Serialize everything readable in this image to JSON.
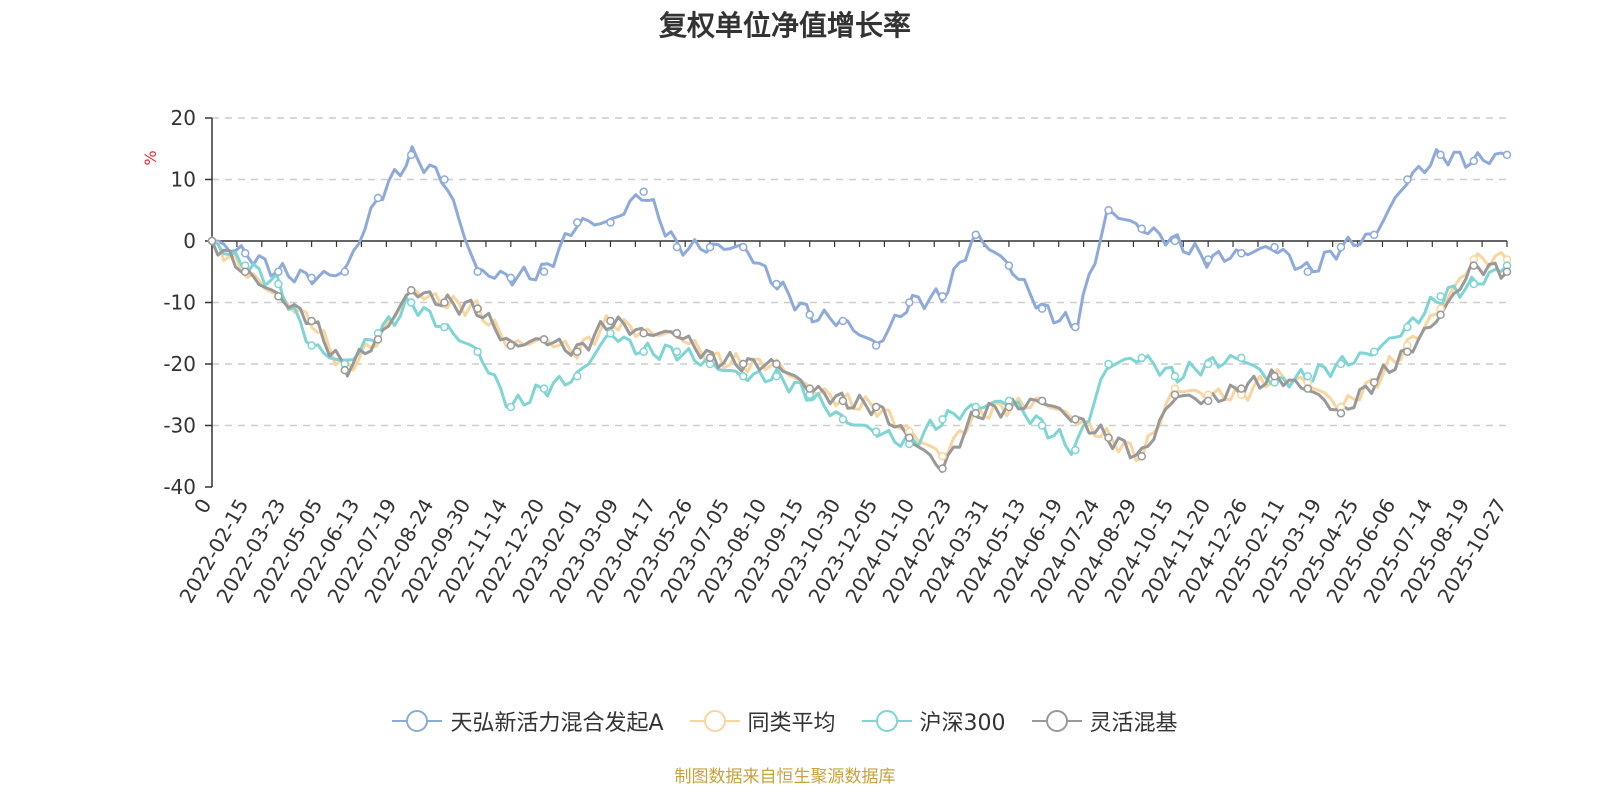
{
  "chart_data": {
    "type": "line",
    "title": "复权单位净值增长率",
    "ylabel": "%",
    "ylim": [
      -40,
      20
    ],
    "yticks": [
      -40,
      -30,
      -20,
      -10,
      0,
      10,
      20
    ],
    "tick_labels": [
      "0",
      "2022-02-15",
      "2022-03-23",
      "2022-05-05",
      "2022-06-13",
      "2022-07-19",
      "2022-08-24",
      "2022-09-30",
      "2022-11-14",
      "2022-12-20",
      "2023-02-01",
      "2023-03-09",
      "2023-04-17",
      "2023-05-26",
      "2023-07-05",
      "2023-08-10",
      "2023-09-15",
      "2023-10-30",
      "2023-12-05",
      "2024-01-10",
      "2024-02-23",
      "2024-03-31",
      "2024-05-13",
      "2024-06-19",
      "2024-07-24",
      "2024-08-29",
      "2024-10-15",
      "2024-11-20",
      "2024-12-26",
      "2025-02-11",
      "2025-03-19",
      "2025-04-25",
      "2025-06-06",
      "2025-07-14",
      "2025-08-19",
      "2025-10-27"
    ],
    "series": [
      {
        "name": "天弘新活力混合发起A",
        "color": "#8eaadb",
        "values": [
          0,
          -2,
          -5,
          -6,
          -5,
          7,
          14,
          10,
          -5,
          -6,
          -5,
          3,
          3,
          8,
          -1,
          -1,
          -1,
          -7,
          -12,
          -13,
          -17,
          -10,
          -9,
          1,
          -4,
          -11,
          -14,
          5,
          2,
          0,
          -3,
          -2,
          -1,
          -5,
          -1,
          1,
          10,
          14,
          13,
          14
        ]
      },
      {
        "name": "同类平均",
        "color": "#f9d6a0",
        "values": [
          0,
          -5,
          -9,
          -13,
          -21,
          -16,
          -8,
          -10,
          -11,
          -17,
          -16,
          -18,
          -13,
          -15,
          -15,
          -19,
          -20,
          -20,
          -24,
          -26,
          -27,
          -31,
          -35,
          -28,
          -27,
          -26,
          -29,
          -32,
          -35,
          -24,
          -25,
          -25,
          -22,
          -23,
          -27,
          -23,
          -17,
          -11,
          -3,
          -3
        ]
      },
      {
        "name": "沪深300",
        "color": "#7fd4d4",
        "values": [
          0,
          -4,
          -7,
          -17,
          -20,
          -15,
          -10,
          -14,
          -18,
          -27,
          -24,
          -22,
          -15,
          -18,
          -18,
          -20,
          -22,
          -22,
          -25,
          -29,
          -31,
          -33,
          -29,
          -27,
          -26,
          -30,
          -34,
          -20,
          -19,
          -22,
          -20,
          -19,
          -23,
          -22,
          -20,
          -18,
          -14,
          -9,
          -7,
          -4
        ]
      },
      {
        "name": "灵活混基",
        "color": "#999999",
        "values": [
          0,
          -5,
          -9,
          -13,
          -21,
          -16,
          -8,
          -10,
          -11,
          -17,
          -16,
          -18,
          -13,
          -15,
          -15,
          -19,
          -20,
          -20,
          -24,
          -26,
          -27,
          -32,
          -37,
          -28,
          -27,
          -26,
          -29,
          -32,
          -35,
          -25,
          -26,
          -24,
          -22,
          -24,
          -28,
          -23,
          -18,
          -12,
          -4,
          -5
        ]
      }
    ]
  },
  "source_text": "制图数据来自恒生聚源数据库",
  "source_color": "#c8a23a",
  "unit_color": "#e03030"
}
